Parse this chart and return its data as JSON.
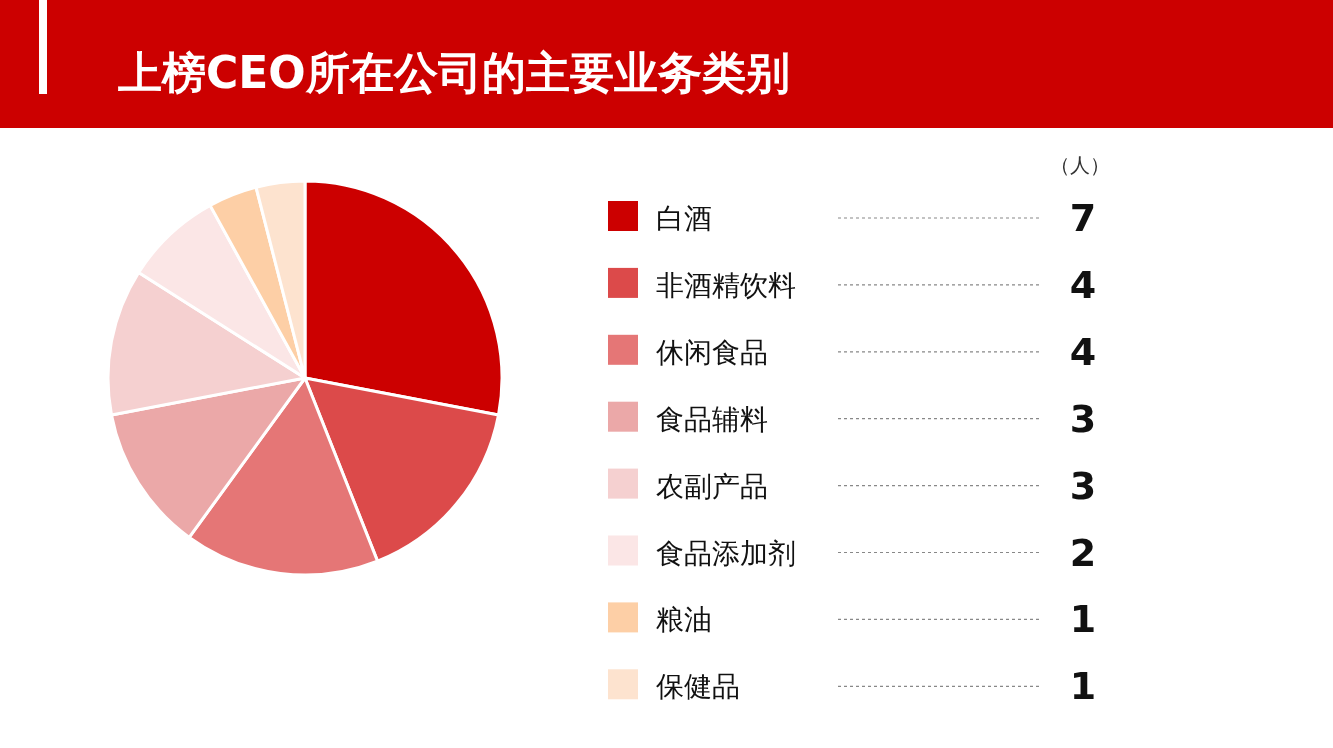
{
  "chart_data": {
    "type": "pie",
    "title": "上榜CEO所在公司的主要业务类别",
    "categories": [
      "白酒",
      "非酒精饮料",
      "休闲食品",
      "食品辅料",
      "农副产品",
      "食品添加剂",
      "粮油",
      "保健品"
    ],
    "values": [
      7,
      4,
      4,
      3,
      3,
      2,
      1,
      1
    ],
    "colors": [
      "#cc0000",
      "#dc4a4a",
      "#e57676",
      "#eba8a8",
      "#f5d0d0",
      "#fbe6e6",
      "#fdcfa6",
      "#fde3cf"
    ],
    "data_labels": true,
    "legend": "right",
    "annotations": [
      "（人）"
    ]
  }
}
